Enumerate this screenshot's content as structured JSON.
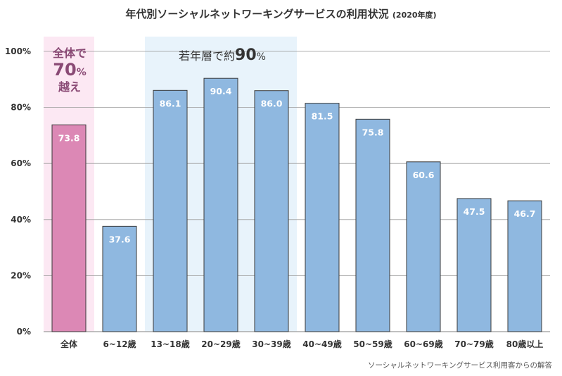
{
  "title": {
    "main": "年代別ソーシャルネットワーキングサービスの利用状況",
    "sub": "(2020年度)"
  },
  "source": "ソーシャルネットワーキングサービス利用客からの解答",
  "callouts": {
    "overall": {
      "line1": "全体で",
      "num": "70",
      "pct": "%",
      "line3": "越え",
      "color": "#8a4a75"
    },
    "young": {
      "prefix": "若年層で約",
      "num": "90",
      "pct": "%",
      "color": "#333333"
    }
  },
  "colors": {
    "overall_bar": "#dc88b5",
    "bar": "#8fb8e0",
    "overall_bg": "#fce8f3",
    "young_bg": "#e8f3fb",
    "grid": "#9a9a9a"
  },
  "chart_data": {
    "type": "bar",
    "title": "年代別ソーシャルネットワーキングサービスの利用状況 (2020年度)",
    "categories": [
      "全体",
      "6~12歳",
      "13~18歳",
      "20~29歳",
      "30~39歳",
      "40~49歳",
      "50~59歳",
      "60~69歳",
      "70~79歳",
      "80歳以上"
    ],
    "values": [
      73.8,
      37.6,
      86.1,
      90.4,
      86.0,
      81.5,
      75.8,
      60.6,
      47.5,
      46.7
    ],
    "value_labels": [
      "73.8",
      "37.6",
      "86.1",
      "90.4",
      "86.0",
      "81.5",
      "75.8",
      "60.6",
      "47.5",
      "46.7"
    ],
    "yticks": [
      0,
      20,
      40,
      60,
      80,
      100
    ],
    "ytick_labels": [
      "0%",
      "20%",
      "40%",
      "60%",
      "80%",
      "100%"
    ],
    "ylim": [
      0,
      100
    ],
    "xlabel": "",
    "ylabel": "",
    "grid": true,
    "highlight": {
      "overall_index": 0,
      "young_range": [
        2,
        4
      ]
    }
  }
}
